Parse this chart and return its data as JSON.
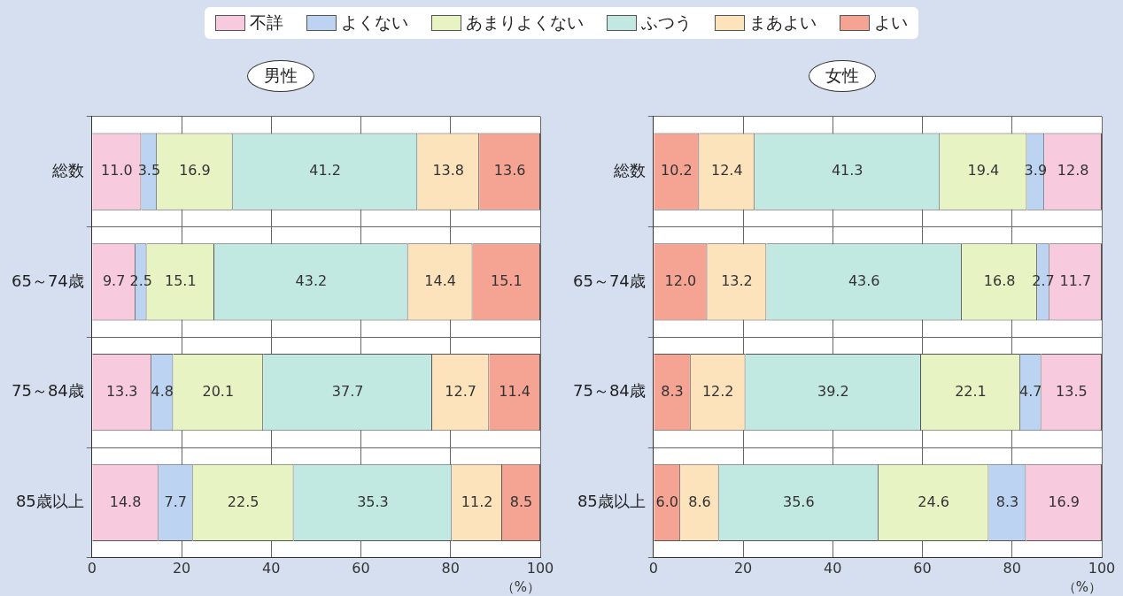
{
  "chart_data": [
    {
      "type": "bar",
      "orientation": "horizontal",
      "stacked": true,
      "title": "男性",
      "xlabel": "（%）",
      "categories": [
        "総数",
        "65～74歳",
        "75～84歳",
        "85歳以上"
      ],
      "xlim": [
        0,
        100
      ],
      "xticks": [
        0,
        20,
        40,
        60,
        80,
        100
      ],
      "grid": true,
      "legend": "top",
      "series": [
        {
          "name": "不詳",
          "color": "#f8cade",
          "values": [
            11.0,
            9.7,
            13.3,
            14.8
          ],
          "value_labels": [
            "11.0",
            "9.7",
            "13.3",
            "14.8"
          ]
        },
        {
          "name": "よくない",
          "color": "#bcd4f2",
          "values": [
            3.5,
            2.5,
            4.8,
            7.7
          ],
          "value_labels": [
            "3.5",
            "2.5",
            "4.8",
            "7.7"
          ]
        },
        {
          "name": "あまりよくない",
          "color": "#e8f3c4",
          "values": [
            16.9,
            15.1,
            20.1,
            22.5
          ],
          "value_labels": [
            "16.9",
            "15.1",
            "20.1",
            "22.5"
          ]
        },
        {
          "name": "ふつう",
          "color": "#c2e8e2",
          "values": [
            41.2,
            43.2,
            37.7,
            35.3
          ],
          "value_labels": [
            "41.2",
            "43.2",
            "37.7",
            "35.3"
          ]
        },
        {
          "name": "まあよい",
          "color": "#fde3bb",
          "values": [
            13.8,
            14.4,
            12.7,
            11.2
          ],
          "value_labels": [
            "13.8",
            "14.4",
            "12.7",
            "11.2"
          ]
        },
        {
          "name": "よい",
          "color": "#f5a393",
          "values": [
            13.6,
            15.1,
            11.4,
            8.5
          ],
          "value_labels": [
            "13.6",
            "15.1",
            "11.4",
            "8.5"
          ]
        }
      ]
    },
    {
      "type": "bar",
      "orientation": "horizontal",
      "stacked": true,
      "title": "女性",
      "xlabel": "（%）",
      "categories": [
        "総数",
        "65～74歳",
        "75～84歳",
        "85歳以上"
      ],
      "xlim": [
        0,
        100
      ],
      "xticks": [
        0,
        20,
        40,
        60,
        80,
        100
      ],
      "grid": true,
      "series": [
        {
          "color": "#f5a393",
          "values": [
            10.2,
            12.0,
            8.3,
            6.0
          ],
          "value_labels": [
            "10.2",
            "12.0",
            "8.3",
            "6.0"
          ]
        },
        {
          "color": "#fde3bb",
          "values": [
            12.4,
            13.2,
            12.2,
            8.6
          ],
          "value_labels": [
            "12.4",
            "13.2",
            "12.2",
            "8.6"
          ]
        },
        {
          "color": "#c2e8e2",
          "values": [
            41.3,
            43.6,
            39.2,
            35.6
          ],
          "value_labels": [
            "41.3",
            "43.6",
            "39.2",
            "35.6"
          ]
        },
        {
          "color": "#e8f3c4",
          "values": [
            19.4,
            16.8,
            22.1,
            24.6
          ],
          "value_labels": [
            "19.4",
            "16.8",
            "22.1",
            "24.6"
          ]
        },
        {
          "color": "#bcd4f2",
          "values": [
            3.9,
            2.7,
            4.7,
            8.3
          ],
          "value_labels": [
            "3.9",
            "2.7",
            "4.7",
            "8.3"
          ]
        },
        {
          "color": "#f8cade",
          "values": [
            12.8,
            11.7,
            13.5,
            16.9
          ],
          "value_labels": [
            "12.8",
            "11.7",
            "13.5",
            "16.9"
          ]
        }
      ]
    }
  ]
}
